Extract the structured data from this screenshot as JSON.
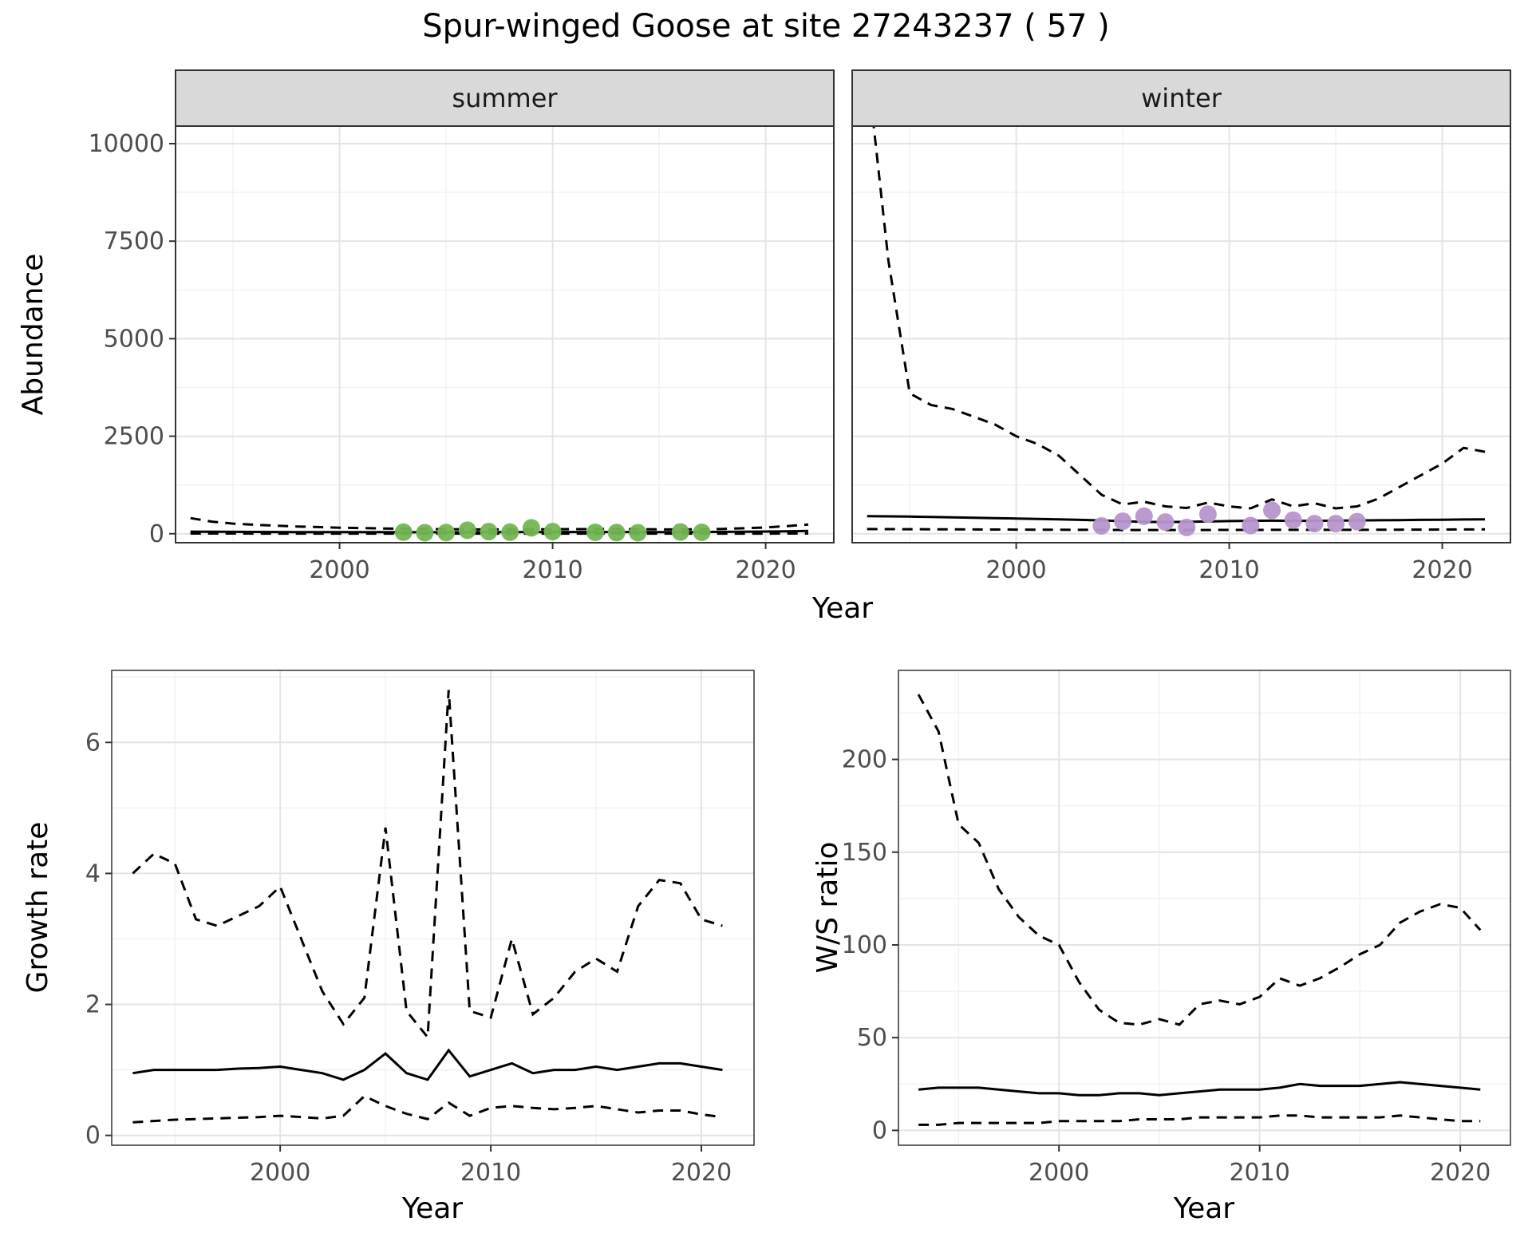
{
  "title": "Spur-winged Goose at site 27243237 ( 57 )",
  "colors": {
    "summer_point": "#74b653",
    "winter_point": "#b795ce",
    "line": "#000000",
    "grid_major": "#e4e4e4",
    "grid_minor": "#f1f1f1",
    "strip_bg": "#d9d9d9",
    "panel_border": "#333333",
    "axis_text": "#4d4d4d"
  },
  "chart_data": [
    {
      "id": "abundance-summer",
      "type": "line",
      "facet_label": "summer",
      "xlabel": "Year",
      "ylabel": "Abundance",
      "xlim": [
        1992.3,
        2023.2
      ],
      "ylim": [
        -230,
        10450
      ],
      "xticks": [
        2000,
        2010,
        2020
      ],
      "xticks_minor": [
        1995,
        2005,
        2015
      ],
      "yticks": [
        0,
        2500,
        5000,
        7500,
        10000
      ],
      "yticks_minor": [
        1250,
        3750,
        6250,
        8750
      ],
      "x": [
        1993,
        1994,
        1995,
        1996,
        1997,
        1998,
        1999,
        2000,
        2001,
        2002,
        2003,
        2004,
        2005,
        2006,
        2007,
        2008,
        2009,
        2010,
        2011,
        2012,
        2013,
        2014,
        2015,
        2016,
        2017,
        2018,
        2019,
        2020,
        2021,
        2022
      ],
      "series": [
        {
          "name": "upper-ci",
          "style": "dashed",
          "values": [
            400,
            310,
            260,
            230,
            205,
            185,
            170,
            155,
            145,
            135,
            125,
            120,
            115,
            112,
            110,
            110,
            112,
            115,
            118,
            120,
            120,
            116,
            112,
            110,
            114,
            124,
            140,
            160,
            195,
            235
          ]
        },
        {
          "name": "median",
          "style": "solid",
          "values": [
            55,
            50,
            48,
            46,
            44,
            43,
            42,
            41,
            40,
            40,
            39,
            39,
            38,
            39,
            40,
            42,
            44,
            45,
            45,
            45,
            44,
            44,
            43,
            43,
            45,
            48,
            52,
            57,
            63,
            70
          ]
        },
        {
          "name": "lower-ci",
          "style": "dashed",
          "values": [
            5,
            5,
            5,
            4,
            4,
            4,
            4,
            4,
            4,
            4,
            3,
            3,
            3,
            3,
            3,
            3,
            3,
            3,
            3,
            3,
            3,
            3,
            3,
            3,
            3,
            4,
            4,
            4,
            5,
            5
          ]
        }
      ],
      "points": {
        "name": "summer-observations",
        "color": "#74b653",
        "x": [
          2003,
          2004,
          2005,
          2006,
          2007,
          2008,
          2009,
          2010,
          2012,
          2013,
          2014,
          2016,
          2017
        ],
        "y": [
          40,
          25,
          30,
          90,
          55,
          40,
          150,
          55,
          35,
          30,
          25,
          45,
          35
        ]
      }
    },
    {
      "id": "abundance-winter",
      "type": "line",
      "facet_label": "winter",
      "xlabel": "Year",
      "ylabel": "Abundance",
      "xlim": [
        1992.3,
        2023.2
      ],
      "ylim": [
        -230,
        10450
      ],
      "xticks": [
        2000,
        2010,
        2020
      ],
      "xticks_minor": [
        1995,
        2005,
        2015
      ],
      "yticks": [
        0,
        2500,
        5000,
        7500,
        10000
      ],
      "yticks_minor": [
        1250,
        3750,
        6250,
        8750
      ],
      "x": [
        1993,
        1994,
        1995,
        1996,
        1997,
        1998,
        1999,
        2000,
        2001,
        2002,
        2003,
        2004,
        2005,
        2006,
        2007,
        2008,
        2009,
        2010,
        2011,
        2012,
        2013,
        2014,
        2015,
        2016,
        2017,
        2018,
        2019,
        2020,
        2021,
        2022
      ],
      "series": [
        {
          "name": "upper-ci",
          "style": "dashed",
          "values": [
            12000,
            7000,
            3600,
            3300,
            3200,
            3000,
            2800,
            2500,
            2300,
            2000,
            1500,
            1000,
            750,
            820,
            700,
            660,
            800,
            700,
            650,
            880,
            700,
            780,
            650,
            700,
            900,
            1200,
            1500,
            1800,
            2200,
            2100
          ]
        },
        {
          "name": "median",
          "style": "solid",
          "values": [
            450,
            445,
            440,
            430,
            420,
            410,
            400,
            390,
            380,
            370,
            355,
            340,
            320,
            305,
            300,
            305,
            315,
            325,
            330,
            335,
            330,
            330,
            335,
            340,
            345,
            350,
            355,
            360,
            365,
            370
          ]
        },
        {
          "name": "lower-ci",
          "style": "dashed",
          "values": [
            120,
            118,
            116,
            114,
            112,
            110,
            108,
            106,
            104,
            102,
            100,
            98,
            96,
            95,
            95,
            95,
            96,
            97,
            98,
            99,
            100,
            100,
            100,
            100,
            102,
            104,
            106,
            108,
            110,
            112
          ]
        }
      ],
      "points": {
        "name": "winter-observations",
        "color": "#b795ce",
        "x": [
          2004,
          2005,
          2006,
          2007,
          2008,
          2009,
          2011,
          2012,
          2013,
          2014,
          2015,
          2016
        ],
        "y": [
          200,
          320,
          450,
          300,
          160,
          500,
          210,
          600,
          350,
          260,
          260,
          310
        ]
      }
    },
    {
      "id": "growth-rate",
      "type": "line",
      "xlabel": "Year",
      "ylabel": "Growth rate",
      "xlim": [
        1992,
        2022.5
      ],
      "ylim": [
        -0.15,
        7.1
      ],
      "xticks": [
        2000,
        2010,
        2020
      ],
      "xticks_minor": [
        1995,
        2005,
        2015
      ],
      "yticks": [
        0,
        2,
        4,
        6
      ],
      "yticks_minor": [
        1,
        3,
        5,
        7
      ],
      "x": [
        1993,
        1994,
        1995,
        1996,
        1997,
        1998,
        1999,
        2000,
        2001,
        2002,
        2003,
        2004,
        2005,
        2006,
        2007,
        2008,
        2009,
        2010,
        2011,
        2012,
        2013,
        2014,
        2015,
        2016,
        2017,
        2018,
        2019,
        2020,
        2021
      ],
      "series": [
        {
          "name": "upper-ci",
          "style": "dashed",
          "values": [
            4.0,
            4.3,
            4.15,
            3.3,
            3.2,
            3.35,
            3.5,
            3.8,
            3.0,
            2.2,
            1.7,
            2.1,
            4.7,
            1.9,
            1.5,
            6.8,
            1.9,
            1.8,
            3.0,
            1.85,
            2.1,
            2.5,
            2.7,
            2.5,
            3.5,
            3.9,
            3.85,
            3.3,
            3.2
          ]
        },
        {
          "name": "median",
          "style": "solid",
          "values": [
            0.95,
            1.0,
            1.0,
            1.0,
            1.0,
            1.02,
            1.03,
            1.05,
            1.0,
            0.95,
            0.85,
            1.0,
            1.25,
            0.95,
            0.85,
            1.3,
            0.9,
            1.0,
            1.1,
            0.95,
            1.0,
            1.0,
            1.05,
            1.0,
            1.05,
            1.1,
            1.1,
            1.05,
            1.0
          ]
        },
        {
          "name": "lower-ci",
          "style": "dashed",
          "values": [
            0.2,
            0.22,
            0.24,
            0.25,
            0.26,
            0.27,
            0.28,
            0.3,
            0.28,
            0.26,
            0.3,
            0.6,
            0.45,
            0.33,
            0.25,
            0.5,
            0.3,
            0.42,
            0.45,
            0.42,
            0.4,
            0.42,
            0.45,
            0.4,
            0.35,
            0.38,
            0.38,
            0.32,
            0.28
          ]
        }
      ]
    },
    {
      "id": "ws-ratio",
      "type": "line",
      "xlabel": "Year",
      "ylabel": "W/S ratio",
      "xlim": [
        1992,
        2022.5
      ],
      "ylim": [
        -8,
        248
      ],
      "xticks": [
        2000,
        2010,
        2020
      ],
      "xticks_minor": [
        1995,
        2005,
        2015
      ],
      "yticks": [
        0,
        50,
        100,
        150,
        200
      ],
      "yticks_minor": [
        25,
        75,
        125,
        175,
        225
      ],
      "x": [
        1993,
        1994,
        1995,
        1996,
        1997,
        1998,
        1999,
        2000,
        2001,
        2002,
        2003,
        2004,
        2005,
        2006,
        2007,
        2008,
        2009,
        2010,
        2011,
        2012,
        2013,
        2014,
        2015,
        2016,
        2017,
        2018,
        2019,
        2020,
        2021
      ],
      "series": [
        {
          "name": "upper-ci",
          "style": "dashed",
          "values": [
            235,
            215,
            165,
            155,
            130,
            115,
            105,
            100,
            80,
            65,
            58,
            57,
            60,
            57,
            68,
            70,
            68,
            72,
            82,
            78,
            82,
            88,
            95,
            100,
            112,
            118,
            122,
            120,
            108
          ]
        },
        {
          "name": "median",
          "style": "solid",
          "values": [
            22,
            23,
            23,
            23,
            22,
            21,
            20,
            20,
            19,
            19,
            20,
            20,
            19,
            20,
            21,
            22,
            22,
            22,
            23,
            25,
            24,
            24,
            24,
            25,
            26,
            25,
            24,
            23,
            22
          ]
        },
        {
          "name": "lower-ci",
          "style": "dashed",
          "values": [
            3,
            3,
            4,
            4,
            4,
            4,
            4,
            5,
            5,
            5,
            5,
            6,
            6,
            6,
            7,
            7,
            7,
            7,
            8,
            8,
            7,
            7,
            7,
            7,
            8,
            7,
            6,
            5,
            5
          ]
        }
      ]
    }
  ]
}
